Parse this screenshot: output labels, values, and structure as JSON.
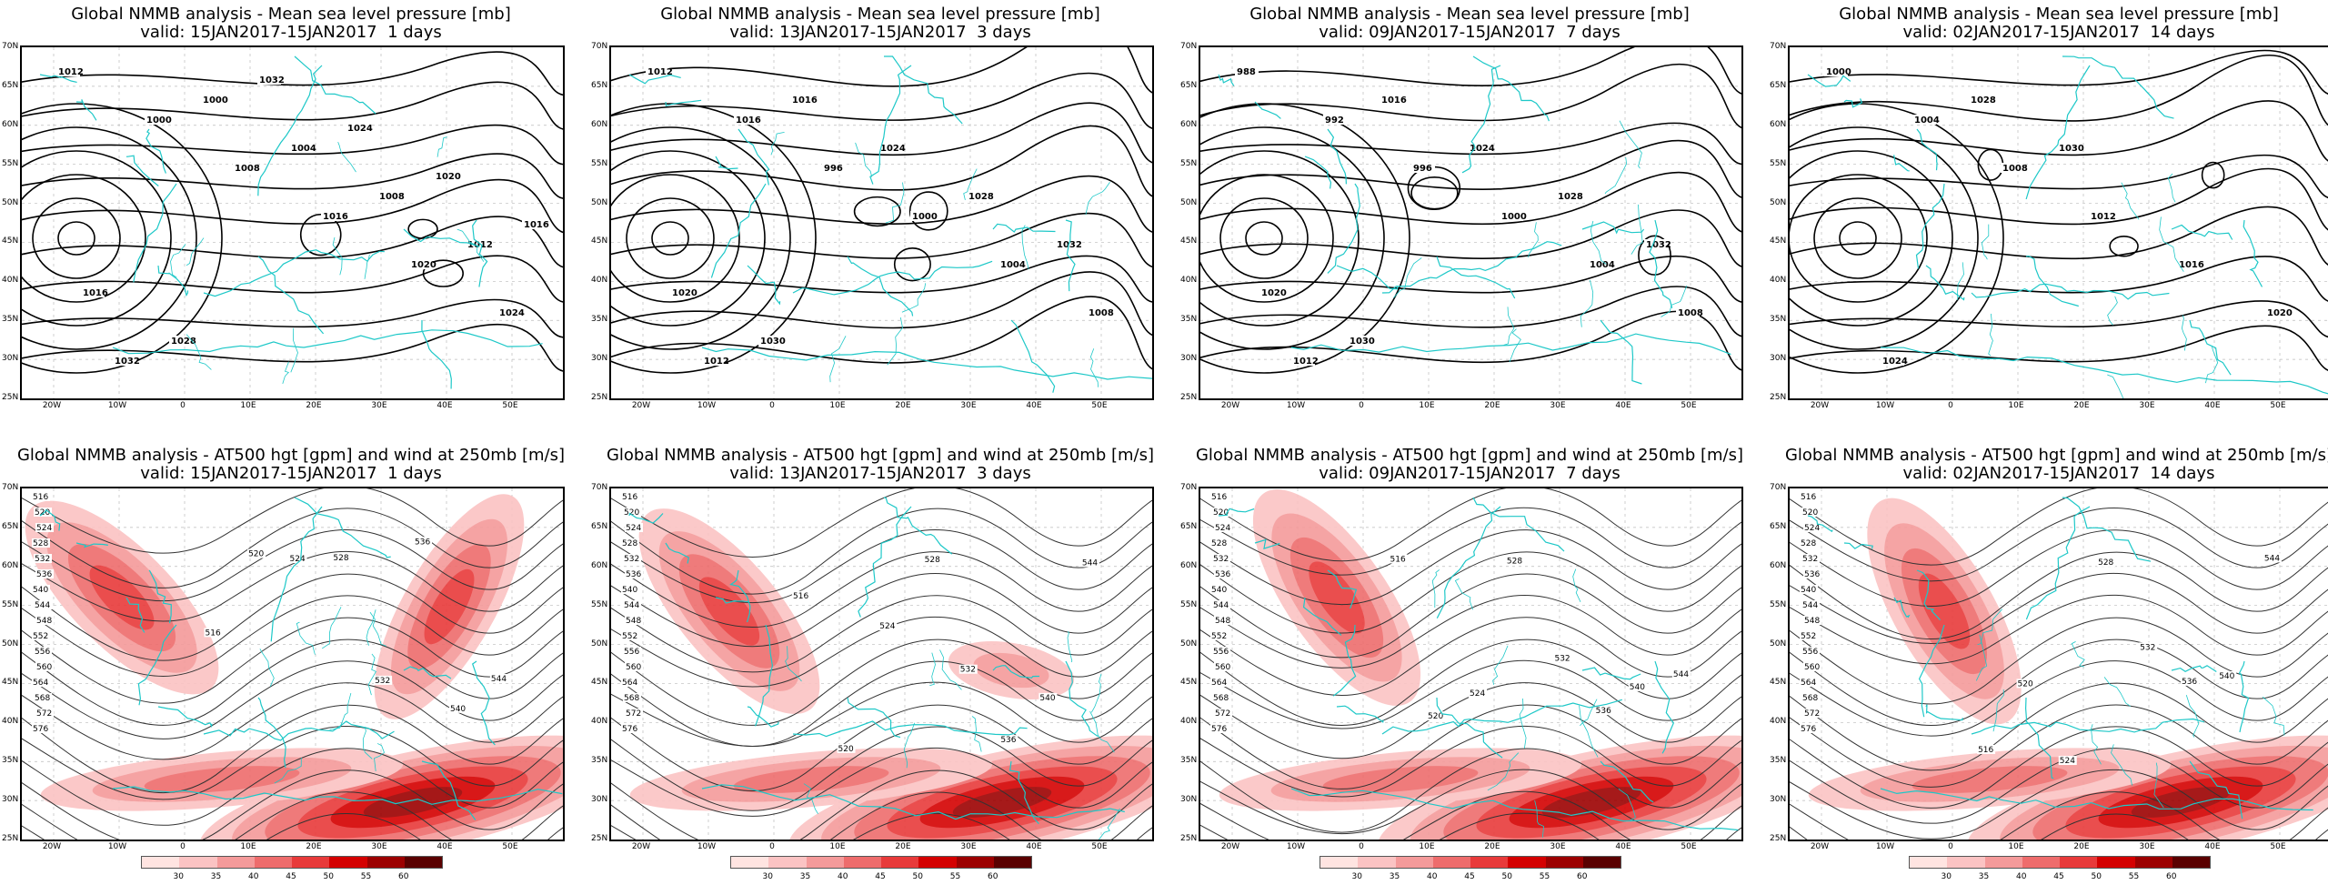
{
  "panels": [
    {
      "title": "Global NMMB analysis - Mean sea level pressure [mb]",
      "valid": "valid: 15JAN2017-15JAN2017  1 days",
      "kind": "mslp"
    },
    {
      "title": "Global NMMB analysis - Mean sea level pressure [mb]",
      "valid": "valid: 13JAN2017-15JAN2017  3 days",
      "kind": "mslp"
    },
    {
      "title": "Global NMMB analysis - Mean sea level pressure [mb]",
      "valid": "valid: 09JAN2017-15JAN2017  7 days",
      "kind": "mslp"
    },
    {
      "title": "Global NMMB analysis - Mean sea level pressure [mb]",
      "valid": "valid: 02JAN2017-15JAN2017  14 days",
      "kind": "mslp"
    },
    {
      "title": "Global NMMB analysis - AT500 hgt [gpm] and wind at 250mb [m/s]",
      "valid": "valid: 15JAN2017-15JAN2017  1 days",
      "kind": "z500"
    },
    {
      "title": "Global NMMB analysis - AT500 hgt [gpm] and wind at 250mb [m/s]",
      "valid": "valid: 13JAN2017-15JAN2017  3 days",
      "kind": "z500"
    },
    {
      "title": "Global NMMB analysis - AT500 hgt [gpm] and wind at 250mb [m/s]",
      "valid": "valid: 09JAN2017-15JAN2017  7 days",
      "kind": "z500"
    },
    {
      "title": "Global NMMB analysis - AT500 hgt [gpm] and wind at 250mb [m/s]",
      "valid": "valid: 02JAN2017-15JAN2017  14 days",
      "kind": "z500"
    }
  ],
  "lat_labels": [
    "70N",
    "65N",
    "60N",
    "55N",
    "50N",
    "45N",
    "40N",
    "35N",
    "30N",
    "25N"
  ],
  "lon_labels": [
    "20W",
    "10W",
    "0",
    "10E",
    "20E",
    "30E",
    "40E",
    "50E"
  ],
  "mslp_contour_labels": [
    [
      "1012",
      "1000",
      "1008",
      "1016",
      "1020",
      "1024",
      "1032",
      "1000",
      "1004",
      "1008",
      "1012",
      "1016",
      "1028",
      "1032",
      "1024",
      "1020",
      "1016"
    ],
    [
      "1012",
      "1016",
      "996",
      "1000",
      "1004",
      "1008",
      "1012",
      "1016",
      "1024",
      "1028",
      "1032",
      "1020",
      "1030"
    ],
    [
      "988",
      "992",
      "996",
      "1000",
      "1004",
      "1008",
      "1012",
      "1016",
      "1024",
      "1028",
      "1032",
      "1020",
      "1030"
    ],
    [
      "1000",
      "1004",
      "1008",
      "1012",
      "1016",
      "1020",
      "1024",
      "1028",
      "1030"
    ]
  ],
  "z500_contour_labels": [
    "516",
    "520",
    "524",
    "528",
    "532",
    "536",
    "540",
    "544",
    "548",
    "552",
    "556",
    "560",
    "564",
    "568",
    "572",
    "576"
  ],
  "colorbar": {
    "labels": [
      "30",
      "35",
      "40",
      "45",
      "50",
      "55",
      "60"
    ],
    "colors": [
      "#ffe4e1",
      "#fbc3c3",
      "#f49a9a",
      "#ee6c6c",
      "#e83a3a",
      "#d40000",
      "#9c0000",
      "#5a0000"
    ]
  }
}
